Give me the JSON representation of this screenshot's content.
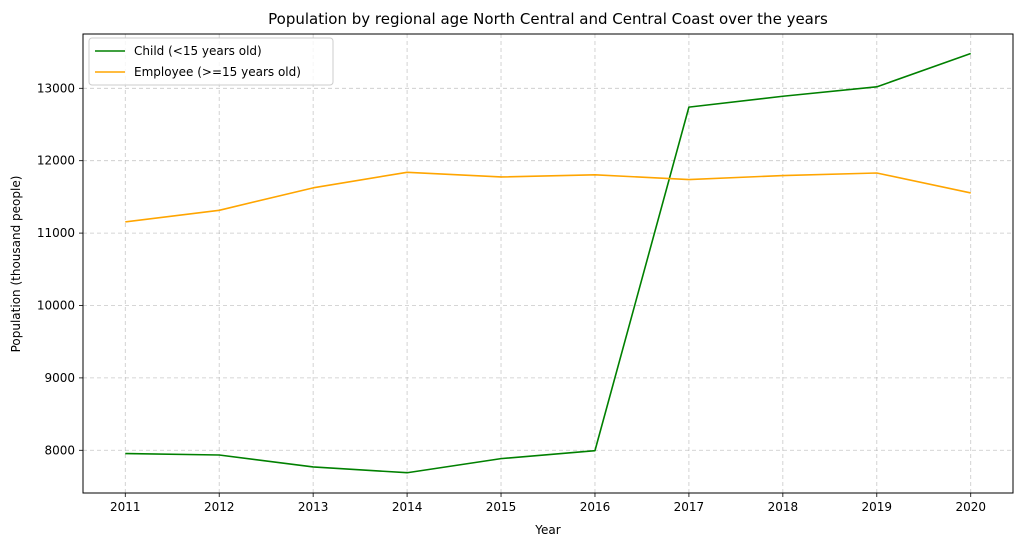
{
  "chart_data": {
    "type": "line",
    "title": "Population by regional age North Central and Central Coast over the years",
    "xlabel": "Year",
    "ylabel": "Population (thousand people)",
    "x": [
      2011,
      2012,
      2013,
      2014,
      2015,
      2016,
      2017,
      2018,
      2019,
      2020
    ],
    "xticks": [
      "2011",
      "2012",
      "2013",
      "2014",
      "2015",
      "2016",
      "2017",
      "2018",
      "2019",
      "2020"
    ],
    "yticks": [
      8000,
      9000,
      10000,
      11000,
      12000,
      13000
    ],
    "ylim": [
      7410,
      13750
    ],
    "xlim": [
      2010.55,
      2020.45
    ],
    "grid": true,
    "grid_style": "dashed",
    "legend_position": "top-left",
    "series": [
      {
        "name": "Child (<15 years old)",
        "color": "#008000",
        "values": [
          7955,
          7935,
          7770,
          7690,
          7885,
          7995,
          12740,
          12890,
          13020,
          13480
        ]
      },
      {
        "name": "Employee (>=15 years old)",
        "color": "#FFA500",
        "values": [
          11155,
          11315,
          11625,
          11840,
          11775,
          11805,
          11740,
          11795,
          11830,
          11555
        ]
      }
    ]
  }
}
